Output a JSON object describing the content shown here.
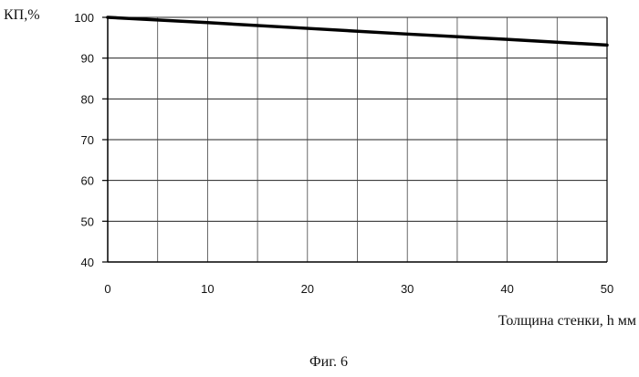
{
  "chart_data": {
    "type": "line",
    "title": "",
    "ylabel": "КП,%",
    "xlabel": "Толщина стенки, h мм",
    "caption": "Фиг. 6",
    "xlim": [
      0,
      50
    ],
    "ylim": [
      40,
      100
    ],
    "x_ticks": [
      0,
      10,
      20,
      30,
      40,
      50
    ],
    "y_ticks": [
      40,
      50,
      60,
      70,
      80,
      90,
      100
    ],
    "x_minor_step": 5,
    "grid": true,
    "line_color": "#000000",
    "series": [
      {
        "x": [
          0,
          10,
          20,
          30,
          40,
          50
        ],
        "y": [
          100,
          98.7,
          97.3,
          95.9,
          94.6,
          93.2
        ]
      }
    ]
  }
}
